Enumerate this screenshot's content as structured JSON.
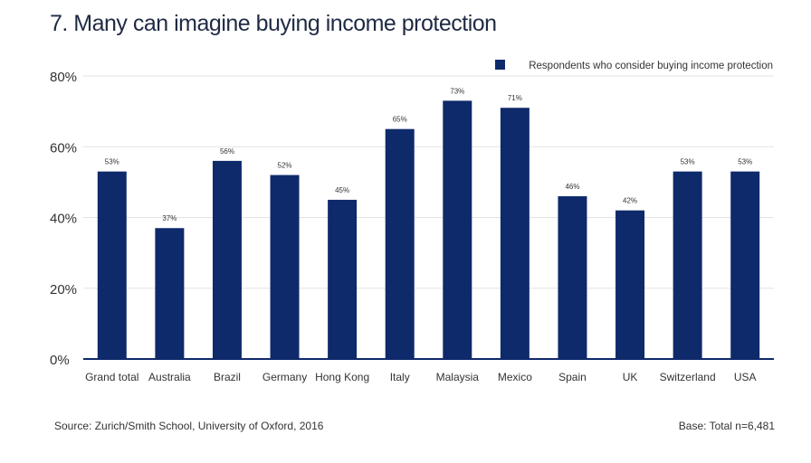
{
  "title": "7. Many can imagine buying income protection",
  "footer": {
    "source": "Source: Zurich/Smith School, University of Oxford, 2016",
    "base": "Base: Total n=6,481"
  },
  "colors": {
    "bar": "#0f2a6b",
    "grid": "#e3e3e3",
    "axis": "#0f2a6b",
    "text": "#333333"
  },
  "chart_data": {
    "type": "bar",
    "categories": [
      "Grand total",
      "Australia",
      "Brazil",
      "Germany",
      "Hong Kong",
      "Italy",
      "Malaysia",
      "Mexico",
      "Spain",
      "UK",
      "Switzerland",
      "USA"
    ],
    "series": [
      {
        "name": "Respondents who consider buying income protection",
        "values": [
          53,
          37,
          56,
          52,
          45,
          65,
          73,
          71,
          46,
          42,
          53,
          53
        ]
      }
    ],
    "data_labels": [
      "53%",
      "37%",
      "56%",
      "52%",
      "45%",
      "65%",
      "73%",
      "71%",
      "46%",
      "42%",
      "53%",
      "53%"
    ],
    "ylim": [
      0,
      80
    ],
    "yticks": [
      0,
      20,
      40,
      60,
      80
    ],
    "ytick_labels": [
      "0%",
      "20%",
      "40%",
      "60%",
      "80%"
    ],
    "grid": true,
    "legend_position": "top-right"
  }
}
